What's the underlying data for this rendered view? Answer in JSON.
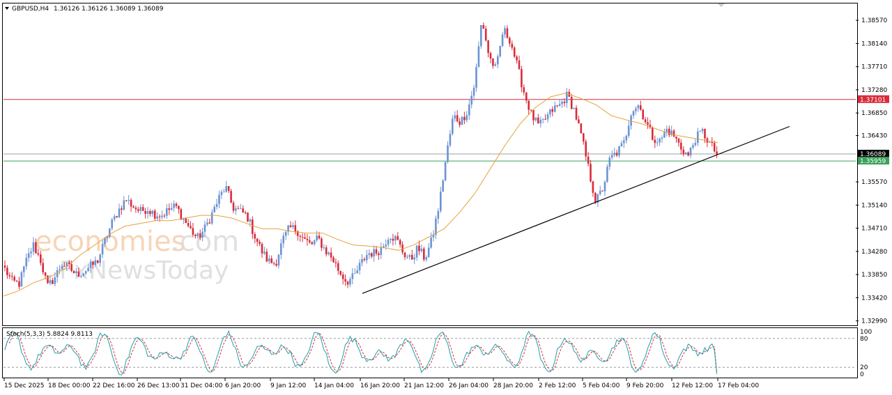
{
  "header": {
    "symbol_timeframe": "GBPUSD,H4",
    "ohlc": "1.36126 1.36126 1.36089 1.36089"
  },
  "watermark": {
    "line1_part1": "economies",
    "line1_part2": ".com",
    "line2": "FxNewsToday"
  },
  "colors": {
    "bull": "#6a93d4",
    "bear": "#d92b3a",
    "ma": "#e8a13a",
    "resistance": "#d92b3a",
    "support": "#3aa05a",
    "trendline": "#000000",
    "stoch_main": "#1f9fa8",
    "stoch_signal": "#d92b3a"
  },
  "chart_data": [
    {
      "type": "candlestick",
      "symbol": "GBPUSD",
      "timeframe": "H4",
      "y_ticks": [
        "1.38570",
        "1.38140",
        "1.37710",
        "1.37280",
        "1.36850",
        "1.36430",
        "1.35570",
        "1.35140",
        "1.34710",
        "1.34280",
        "1.33850",
        "1.33420",
        "1.32990"
      ],
      "ylim": [
        1.3292,
        1.3887
      ],
      "x_labels": [
        "15 Dec 2025",
        "18 Dec 00:00",
        "22 Dec 16:00",
        "26 Dec 13:00",
        "31 Dec 04:00",
        "6 Jan 20:00",
        "9 Jan 12:00",
        "14 Jan 04:00",
        "16 Jan 20:00",
        "21 Jan 12:00",
        "26 Jan 04:00",
        "28 Jan 20:00",
        "2 Feb 12:00",
        "5 Feb 04:00",
        "9 Feb 20:00",
        "12 Feb 12:00",
        "17 Feb 04:00"
      ],
      "close_path": [
        1.3395,
        1.3372,
        1.3368,
        1.341,
        1.344,
        1.3412,
        1.3362,
        1.338,
        1.3405,
        1.3398,
        1.3385,
        1.339,
        1.34,
        1.341,
        1.3445,
        1.348,
        1.3505,
        1.3525,
        1.3512,
        1.3502,
        1.3508,
        1.3498,
        1.3495,
        1.3505,
        1.3512,
        1.349,
        1.347,
        1.3452,
        1.3468,
        1.3495,
        1.3525,
        1.3548,
        1.351,
        1.3502,
        1.3495,
        1.346,
        1.343,
        1.341,
        1.3405,
        1.3448,
        1.3472,
        1.3468,
        1.345,
        1.344,
        1.3452,
        1.343,
        1.3415,
        1.339,
        1.3372,
        1.338,
        1.3405,
        1.3425,
        1.3425,
        1.3435,
        1.346,
        1.345,
        1.3425,
        1.3412,
        1.3435,
        1.3415,
        1.345,
        1.3515,
        1.3605,
        1.368,
        1.3668,
        1.369,
        1.374,
        1.386,
        1.379,
        1.3765,
        1.384,
        1.382,
        1.377,
        1.372,
        1.368,
        1.366,
        1.3675,
        1.3692,
        1.37,
        1.3718,
        1.369,
        1.364,
        1.358,
        1.352,
        1.3545,
        1.36,
        1.3612,
        1.363,
        1.369,
        1.37,
        1.367,
        1.364,
        1.3632,
        1.3655,
        1.3642,
        1.362,
        1.3605,
        1.3638,
        1.365,
        1.3628,
        1.36089
      ],
      "moving_average": {
        "points": [
          1.3345,
          1.3355,
          1.337,
          1.338,
          1.3395,
          1.342,
          1.344,
          1.346,
          1.3475,
          1.348,
          1.3485,
          1.3485,
          1.349,
          1.3495,
          1.3495,
          1.349,
          1.348,
          1.347,
          1.347,
          1.3465,
          1.3462,
          1.3462,
          1.345,
          1.344,
          1.3438,
          1.3435,
          1.343,
          1.344,
          1.3455,
          1.347,
          1.35,
          1.3535,
          1.358,
          1.3625,
          1.3665,
          1.3695,
          1.3715,
          1.3722,
          1.3712,
          1.37,
          1.368,
          1.3672,
          1.3665,
          1.3655,
          1.3645,
          1.364,
          1.3635,
          1.363
        ]
      },
      "horizontal_lines": [
        {
          "price": "1.37101",
          "label": "1.37101"
        },
        {
          "price": "1.36089",
          "label": "1.36089"
        },
        {
          "price": "1.35959",
          "label": "1.35959"
        }
      ],
      "trendline": {
        "from": [
          1.335,
          0.0
        ],
        "to": [
          1.366,
          1.0
        ]
      }
    },
    {
      "type": "line",
      "title": "Stoch(5,3,3) 5.8824 9.8113",
      "y_ticks": [
        "100",
        "80",
        "20",
        "0"
      ],
      "levels": [
        80,
        20
      ],
      "ylim": [
        0,
        100
      ]
    }
  ]
}
